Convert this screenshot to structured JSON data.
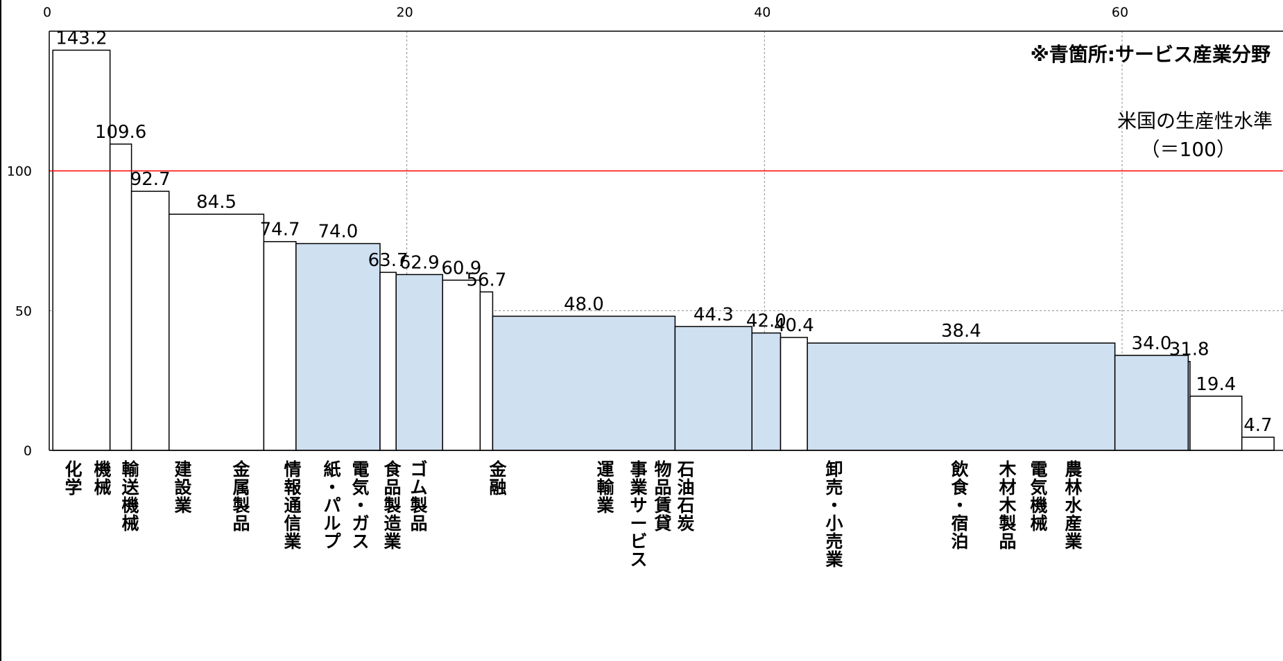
{
  "chart_data": {
    "type": "bar",
    "variable_width": true,
    "x_axis": {
      "min": 0,
      "max": 69,
      "ticks": [
        0,
        20,
        40,
        60
      ],
      "grid": true,
      "position": "top"
    },
    "y_axis": {
      "min": 0,
      "max": 150,
      "ticks": [
        0,
        50,
        100
      ],
      "grid": true
    },
    "reference_line": {
      "value": 100,
      "color": "#ff0000",
      "label_line1": "米国の生産性水準",
      "label_line2": "（＝100）"
    },
    "annotation": "※青箇所:サービス産業分野",
    "colors": {
      "service": "#cfe0f1",
      "other": "#ffffff",
      "border": "#000000"
    },
    "categories": [
      {
        "label": "化学",
        "value": 143.2,
        "value_label": "143.2",
        "x_start": 0.2,
        "x_end": 3.4,
        "service": false
      },
      {
        "label": "機械",
        "value": 109.6,
        "value_label": "109.6",
        "x_start": 3.4,
        "x_end": 4.6,
        "service": false
      },
      {
        "label": "輸送機械",
        "value": 92.7,
        "value_label": "92.7",
        "x_start": 4.6,
        "x_end": 6.7,
        "service": false
      },
      {
        "label": "建設業",
        "value": 84.5,
        "value_label": "84.5",
        "x_start": 6.7,
        "x_end": 12.0,
        "service": false
      },
      {
        "label": "金属製品",
        "value": 74.7,
        "value_label": "74.7",
        "x_start": 12.0,
        "x_end": 13.8,
        "service": false
      },
      {
        "label": "情報通信業",
        "value": 74.0,
        "value_label": "74.0",
        "x_start": 13.8,
        "x_end": 18.5,
        "service": true
      },
      {
        "label": "紙・パルプ",
        "value": 63.7,
        "value_label": "63.7",
        "x_start": 18.5,
        "x_end": 19.4,
        "service": false
      },
      {
        "label": "電気・ガス",
        "value": 62.9,
        "value_label": "62.9",
        "x_start": 19.4,
        "x_end": 22.0,
        "service": true
      },
      {
        "label": "食品製造業",
        "value": 60.9,
        "value_label": "60.9",
        "x_start": 22.0,
        "x_end": 24.1,
        "service": false
      },
      {
        "label": "ゴム製品",
        "value": 56.7,
        "value_label": "56.7",
        "x_start": 24.1,
        "x_end": 24.8,
        "service": false
      },
      {
        "label": "金融",
        "value": 48.0,
        "value_label": "48.0",
        "x_start": 24.8,
        "x_end": 35.0,
        "service": true
      },
      {
        "label": "運輸業",
        "value": 44.3,
        "value_label": "44.3",
        "x_start": 35.0,
        "x_end": 39.3,
        "service": true
      },
      {
        "label": "事業サービス",
        "value": 42.0,
        "value_label": "42.0",
        "x_start": 39.3,
        "x_end": 40.9,
        "service": true
      },
      {
        "label": "物品賃貸",
        "value": 40.4,
        "value_label": "40.4",
        "x_start": 40.9,
        "x_end": 42.4,
        "service": false
      },
      {
        "label": "石油石炭",
        "value": 38.4,
        "value_label": "38.4",
        "x_start": 42.4,
        "x_end": 59.6,
        "service": true
      },
      {
        "label": "卸売・小売業",
        "value": 34.0,
        "value_label": "34.0",
        "x_start": 59.6,
        "x_end": 63.7,
        "service": true
      },
      {
        "label": "飲食・宿泊",
        "value": 31.8,
        "value_label": "31.8",
        "x_start": 63.7,
        "x_end": 63.8,
        "service": true
      },
      {
        "label": "木材木製品",
        "value": 19.4,
        "value_label": "19.4",
        "x_start": 63.8,
        "x_end": 66.7,
        "service": false
      },
      {
        "label": "電気機械",
        "value": 4.7,
        "value_label": "4.7",
        "x_start": 66.7,
        "x_end": 68.5,
        "service": false
      },
      {
        "label": "農林水産業",
        "value": null,
        "value_label": "",
        "x_start": 68.5,
        "x_end": 68.5,
        "service": false
      }
    ]
  }
}
